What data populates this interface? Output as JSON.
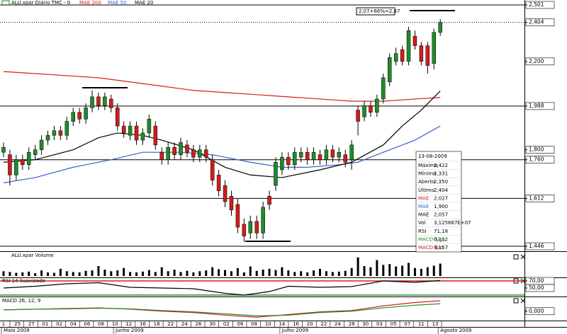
{
  "chart_data": [
    {
      "type": "candlestick",
      "title": "ALU.xpar Diário TMC - 0",
      "up_color": "#1e8c28",
      "down_color": "#d01c1c",
      "open": [
        1.79,
        1.78,
        1.7,
        1.76,
        1.74,
        1.78,
        1.8,
        1.84,
        1.86,
        1.88,
        1.86,
        1.92,
        1.96,
        1.93,
        1.98,
        2.03,
        1.99,
        2.02,
        1.98,
        1.9,
        1.86,
        1.9,
        1.84,
        1.87,
        1.9,
        1.79,
        1.76,
        1.81,
        1.78,
        1.82,
        1.8,
        1.77,
        1.8,
        1.76,
        1.7,
        1.66,
        1.62,
        1.59,
        1.52,
        1.49,
        1.53,
        1.49,
        1.62,
        1.66,
        1.72,
        1.77,
        1.74,
        1.77,
        1.79,
        1.76,
        1.78,
        1.76,
        1.8,
        1.77,
        1.78,
        1.76,
        1.97,
        1.94,
        1.99,
        1.96,
        2.02,
        2.1,
        2.2,
        2.26,
        2.2,
        2.33,
        2.28,
        2.28,
        2.19,
        2.35
      ],
      "high": [
        1.83,
        1.8,
        1.78,
        1.78,
        1.81,
        1.82,
        1.86,
        1.88,
        1.9,
        1.9,
        1.94,
        1.98,
        1.98,
        2.0,
        2.06,
        2.05,
        2.05,
        2.04,
        2.0,
        1.92,
        1.92,
        1.92,
        1.89,
        1.95,
        1.92,
        1.81,
        1.83,
        1.83,
        1.85,
        1.84,
        1.82,
        1.82,
        1.82,
        1.78,
        1.72,
        1.68,
        1.64,
        1.61,
        1.54,
        1.55,
        1.55,
        1.6,
        1.64,
        1.77,
        1.79,
        1.79,
        1.81,
        1.81,
        1.81,
        1.81,
        1.8,
        1.82,
        1.82,
        1.81,
        1.8,
        1.84,
        1.99,
        2.01,
        2.01,
        2.04,
        2.14,
        2.24,
        2.27,
        2.28,
        2.38,
        2.36,
        2.3,
        2.3,
        2.37,
        2.422
      ],
      "low": [
        1.77,
        1.66,
        1.68,
        1.72,
        1.72,
        1.76,
        1.78,
        1.82,
        1.84,
        1.84,
        1.84,
        1.9,
        1.91,
        1.91,
        1.96,
        1.97,
        1.97,
        1.96,
        1.88,
        1.85,
        1.84,
        1.82,
        1.82,
        1.85,
        1.8,
        1.74,
        1.74,
        1.76,
        1.76,
        1.77,
        1.75,
        1.75,
        1.75,
        1.66,
        1.62,
        1.58,
        1.55,
        1.49,
        1.46,
        1.47,
        1.47,
        1.47,
        1.57,
        1.64,
        1.7,
        1.72,
        1.72,
        1.75,
        1.74,
        1.74,
        1.74,
        1.74,
        1.75,
        1.75,
        1.73,
        1.72,
        1.86,
        1.92,
        1.94,
        1.94,
        2.0,
        2.08,
        2.18,
        2.18,
        2.18,
        2.26,
        2.18,
        2.14,
        2.16,
        2.331
      ],
      "close": [
        1.81,
        1.7,
        1.76,
        1.74,
        1.79,
        1.8,
        1.84,
        1.86,
        1.88,
        1.86,
        1.92,
        1.96,
        1.93,
        1.98,
        2.03,
        1.99,
        2.03,
        1.98,
        1.9,
        1.87,
        1.9,
        1.84,
        1.87,
        1.93,
        1.82,
        1.76,
        1.81,
        1.78,
        1.83,
        1.79,
        1.77,
        1.8,
        1.77,
        1.68,
        1.64,
        1.6,
        1.57,
        1.51,
        1.48,
        1.53,
        1.49,
        1.58,
        1.59,
        1.75,
        1.77,
        1.74,
        1.79,
        1.79,
        1.76,
        1.79,
        1.76,
        1.8,
        1.77,
        1.79,
        1.75,
        1.82,
        1.92,
        1.99,
        1.96,
        2.02,
        2.12,
        2.22,
        2.24,
        2.2,
        2.36,
        2.28,
        2.2,
        2.18,
        2.35,
        2.404
      ],
      "ylim": [
        1.446,
        2.501
      ],
      "log_scale": true,
      "yticks": [
        {
          "value": 2.501,
          "label": "2,501"
        },
        {
          "value": 2.404,
          "label": "2,404"
        },
        {
          "value": 2.2,
          "label": "2,200"
        },
        {
          "value": 1.988,
          "label": "1,988"
        },
        {
          "value": 1.8,
          "label": "1,800"
        },
        {
          "value": 1.76,
          "label": "1,760"
        },
        {
          "value": 1.612,
          "label": "1,612"
        },
        {
          "value": 1.446,
          "label": "1,446"
        }
      ],
      "hlines": [
        2.501,
        1.988,
        1.76,
        1.612,
        1.446
      ],
      "annotation": "2,07+66%=2,47",
      "series": [
        {
          "name": "MAE 200",
          "color": "#d42020",
          "x": [
            0,
            5,
            10,
            15,
            20,
            25,
            30,
            35,
            40,
            45,
            50,
            55,
            60,
            65,
            69
          ],
          "values": [
            2.15,
            2.14,
            2.13,
            2.12,
            2.1,
            2.08,
            2.06,
            2.05,
            2.04,
            2.03,
            2.02,
            2.01,
            2.01,
            2.02,
            2.027
          ]
        },
        {
          "name": "MAE 50",
          "color": "#3a5fd0",
          "x": [
            0,
            5,
            11,
            17,
            22,
            28,
            33,
            39,
            44,
            48,
            53,
            56,
            60,
            65,
            69
          ],
          "values": [
            1.67,
            1.69,
            1.73,
            1.76,
            1.79,
            1.79,
            1.78,
            1.75,
            1.73,
            1.73,
            1.74,
            1.75,
            1.79,
            1.84,
            1.9
          ]
        },
        {
          "name": "MAE 20",
          "color": "#000000",
          "x": [
            0,
            5,
            11,
            15,
            18,
            22,
            25,
            30,
            35,
            39,
            44,
            50,
            55,
            60,
            63,
            66,
            69
          ],
          "values": [
            1.75,
            1.76,
            1.8,
            1.85,
            1.87,
            1.86,
            1.84,
            1.8,
            1.73,
            1.7,
            1.69,
            1.72,
            1.75,
            1.82,
            1.9,
            1.97,
            2.057
          ]
        }
      ]
    },
    {
      "type": "bar",
      "title": "ALU.xpar Volume",
      "color": "#000000",
      "ylim": [
        0,
        50
      ],
      "values": [
        12,
        10,
        8,
        9,
        11,
        7,
        14,
        9,
        8,
        18,
        12,
        10,
        9,
        13,
        14,
        25,
        16,
        12,
        14,
        20,
        10,
        9,
        11,
        15,
        10,
        22,
        12,
        16,
        10,
        13,
        9,
        12,
        14,
        22,
        17,
        15,
        12,
        20,
        9,
        24,
        13,
        16,
        18,
        15,
        22,
        14,
        10,
        12,
        9,
        14,
        18,
        12,
        10,
        11,
        13,
        20,
        47,
        25,
        22,
        40,
        28,
        30,
        24,
        26,
        33,
        20,
        18,
        22,
        26,
        31.26
      ]
    },
    {
      "type": "line",
      "title": "RSI 14 Suavizado",
      "ylim": [
        28,
        80
      ],
      "yticks": [
        {
          "value": 70,
          "label": "70,00"
        },
        {
          "value": 50,
          "label": "50,00"
        }
      ],
      "levels": [
        {
          "value": 70,
          "color": "#d42020"
        },
        {
          "value": 30,
          "color": "#1e8c28"
        }
      ],
      "series": [
        {
          "color": "#000000",
          "x": [
            0,
            5,
            10,
            15,
            20,
            25,
            30,
            35,
            38,
            42,
            45,
            50,
            55,
            60,
            65,
            69
          ],
          "values": [
            50,
            55,
            62,
            65,
            52,
            50,
            48,
            35,
            30,
            40,
            55,
            52,
            54,
            70,
            66,
            71.18
          ]
        }
      ]
    },
    {
      "type": "line",
      "title": "MACD 26, 12, 9",
      "ylim": [
        -0.13,
        0.21
      ],
      "yticks": [
        {
          "value": 0,
          "label": "0,000"
        }
      ],
      "series": [
        {
          "color": "#d42020",
          "x": [
            0,
            5,
            10,
            15,
            20,
            25,
            30,
            35,
            40,
            45,
            50,
            55,
            60,
            65,
            69
          ],
          "values": [
            0.02,
            0.03,
            0.04,
            0.05,
            0.03,
            0,
            -0.02,
            -0.06,
            -0.09,
            -0.05,
            -0.01,
            0.01,
            0.08,
            0.13,
            0.157
          ]
        },
        {
          "color": "#1e8c28",
          "x": [
            0,
            5,
            10,
            15,
            20,
            25,
            30,
            35,
            40,
            45,
            50,
            55,
            60,
            65,
            69
          ],
          "values": [
            0.02,
            0.03,
            0.035,
            0.045,
            0.035,
            0.01,
            -0.01,
            -0.04,
            -0.07,
            -0.06,
            -0.02,
            0,
            0.05,
            0.09,
            0.112
          ]
        }
      ]
    }
  ],
  "x_axis": {
    "ticks": [
      {
        "value": 0,
        "label": "1"
      },
      {
        "value": 2.2,
        "label": "25"
      },
      {
        "value": 4.4,
        "label": "27"
      },
      {
        "value": 6.6,
        "label": "01"
      },
      {
        "value": 8.8,
        "label": "02"
      },
      {
        "value": 11,
        "label": "04"
      },
      {
        "value": 13.2,
        "label": "06"
      },
      {
        "value": 15.4,
        "label": "08"
      },
      {
        "value": 17.6,
        "label": "10"
      },
      {
        "value": 19.8,
        "label": "12"
      },
      {
        "value": 22,
        "label": "16"
      },
      {
        "value": 24.2,
        "label": "18"
      },
      {
        "value": 26.4,
        "label": "22"
      },
      {
        "value": 28.6,
        "label": "24"
      },
      {
        "value": 30.8,
        "label": "26"
      },
      {
        "value": 33,
        "label": "30"
      },
      {
        "value": 35.2,
        "label": "02"
      },
      {
        "value": 37.4,
        "label": "06"
      },
      {
        "value": 39.6,
        "label": "08"
      },
      {
        "value": 41.8,
        "label": "10"
      },
      {
        "value": 44,
        "label": "14"
      },
      {
        "value": 46.2,
        "label": "16"
      },
      {
        "value": 48.4,
        "label": "20"
      },
      {
        "value": 50.6,
        "label": "22"
      },
      {
        "value": 52.8,
        "label": "24"
      },
      {
        "value": 55,
        "label": "28"
      },
      {
        "value": 57.2,
        "label": "30"
      },
      {
        "value": 59.4,
        "label": "03"
      },
      {
        "value": 61.6,
        "label": "05"
      },
      {
        "value": 63.8,
        "label": "07"
      },
      {
        "value": 66,
        "label": "11"
      },
      {
        "value": 68.2,
        "label": "13"
      }
    ],
    "months": [
      {
        "value": 0,
        "label": "Maio 2009"
      },
      {
        "value": 17.7,
        "label": "Junho 2009"
      },
      {
        "value": 44,
        "label": "Julho 2009"
      },
      {
        "value": 69,
        "label": "Agosto 2009"
      }
    ]
  },
  "info_box": {
    "date": "13-08-2009",
    "rows": [
      {
        "label": "Máximo",
        "value": "2,422",
        "color": "#000000"
      },
      {
        "label": "Mínimo",
        "value": "2,331",
        "color": "#000000"
      },
      {
        "label": "Aberto",
        "value": "2,350",
        "color": "#000000"
      },
      {
        "label": "Último",
        "value": "2,404",
        "color": "#000000"
      },
      {
        "label": "MAE",
        "value": "2,027",
        "color": "#d42020"
      },
      {
        "label": "MAE",
        "value": "1,900",
        "color": "#3a5fd0"
      },
      {
        "label": "MAE",
        "value": "2,057",
        "color": "#000000"
      },
      {
        "label": "Vol",
        "value": "3,125667E+07",
        "color": "#000000"
      },
      {
        "label": "RSI",
        "value": "71,18",
        "color": "#000000"
      },
      {
        "label": "MACD Sign",
        "value": "0,112",
        "color": "#1e8c28"
      },
      {
        "label": "MACD Bas",
        "value": "0,157",
        "color": "#d42020"
      }
    ]
  }
}
